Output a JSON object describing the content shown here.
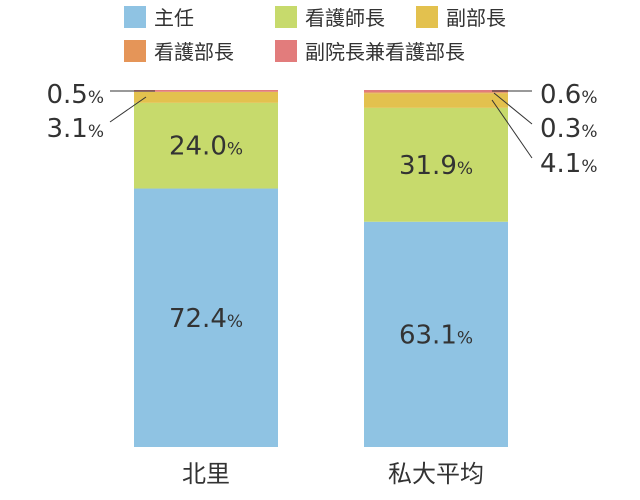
{
  "chart_data": {
    "type": "bar",
    "stacked": true,
    "normalized": true,
    "categories": [
      "北里",
      "私大平均"
    ],
    "series": [
      {
        "name": "主任",
        "color": "#8fc3e3",
        "values": [
          72.4,
          63.1
        ]
      },
      {
        "name": "看護師長",
        "color": "#c7da6c",
        "values": [
          24.0,
          31.9
        ]
      },
      {
        "name": "副部長",
        "color": "#e3c14e",
        "values": [
          3.1,
          4.1
        ]
      },
      {
        "name": "看護部長",
        "color": "#e59558",
        "values": [
          0.0,
          0.3
        ]
      },
      {
        "name": "副院長兼看護部長",
        "color": "#e27c7c",
        "values": [
          0.5,
          0.6
        ]
      }
    ],
    "data_labels": [
      {
        "category": 0,
        "series": 0,
        "text": "72.4",
        "unit": "%"
      },
      {
        "category": 0,
        "series": 1,
        "text": "24.0",
        "unit": "%"
      },
      {
        "category": 0,
        "series": 2,
        "text": "3.1",
        "unit": "%"
      },
      {
        "category": 0,
        "series": 4,
        "text": "0.5",
        "unit": "%"
      },
      {
        "category": 1,
        "series": 0,
        "text": "63.1",
        "unit": "%"
      },
      {
        "category": 1,
        "series": 1,
        "text": "31.9",
        "unit": "%"
      },
      {
        "category": 1,
        "series": 4,
        "text": "0.6",
        "unit": "%"
      },
      {
        "category": 1,
        "series": 3,
        "text": "0.3",
        "unit": "%"
      },
      {
        "category": 1,
        "series": 2,
        "text": "4.1",
        "unit": "%"
      }
    ],
    "legend_position": "top",
    "ylim": [
      0,
      100
    ],
    "grid": false,
    "title": "",
    "xlabel": "",
    "ylabel": ""
  }
}
